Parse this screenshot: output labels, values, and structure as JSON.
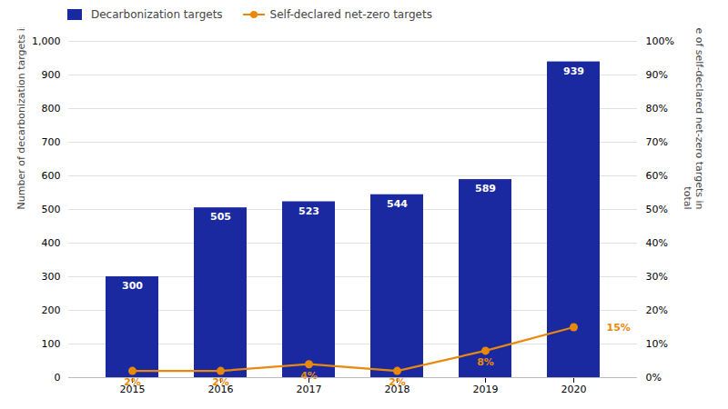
{
  "chart_data": {
    "type": "bar",
    "categories": [
      "2015",
      "2016",
      "2017",
      "2018",
      "2019",
      "2020"
    ],
    "series": [
      {
        "name": "Decarbonization targets",
        "type": "bar",
        "color": "#1a29a0",
        "values": [
          300,
          505,
          523,
          544,
          589,
          939
        ],
        "data_labels": true
      },
      {
        "name": "Self-declared net-zero targets",
        "type": "line",
        "axis": "y2",
        "color": "#e8890c",
        "marker": "circle",
        "values": [
          2,
          2,
          4,
          2,
          8,
          15
        ],
        "value_labels": [
          "2%",
          "2%",
          "4%",
          "2%",
          "8%",
          "15%"
        ],
        "data_labels": true
      }
    ],
    "ylabel": "Number of decarbonization targets issued",
    "y2label": "Percentage of self-declared net-zero targets in\ntotal",
    "ylim": [
      0,
      1000
    ],
    "yticks": [
      0,
      100,
      200,
      300,
      400,
      500,
      600,
      700,
      800,
      900,
      {
        "value": 1000,
        "label": "1,000"
      }
    ],
    "y2lim": [
      0,
      100
    ],
    "y2ticks": [
      {
        "value": 0,
        "label": "0%"
      },
      {
        "value": 10,
        "label": "10%"
      },
      {
        "value": 20,
        "label": "20%"
      },
      {
        "value": 30,
        "label": "30%"
      },
      {
        "value": 40,
        "label": "40%"
      },
      {
        "value": 50,
        "label": "50%"
      },
      {
        "value": 60,
        "label": "60%"
      },
      {
        "value": 70,
        "label": "70%"
      },
      {
        "value": 80,
        "label": "80%"
      },
      {
        "value": 90,
        "label": "90%"
      },
      {
        "value": 100,
        "label": "100%"
      }
    ],
    "grid": true,
    "legend": "upper left"
  }
}
